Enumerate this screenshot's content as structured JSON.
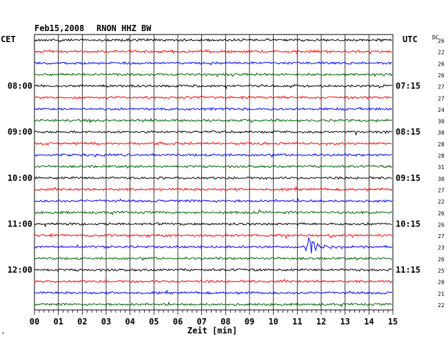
{
  "header": {
    "date": "Feb15,2008",
    "station": "RNON HHZ BW"
  },
  "labels": {
    "left_tz": "CET",
    "right_tz": "UTC",
    "dc_label": "DC",
    "corner_mark": "∘"
  },
  "colors": {
    "trace": [
      "#000000",
      "#ff0000",
      "#0000ff",
      "#006400"
    ],
    "grid": "#000000"
  },
  "chart_data": {
    "type": "line",
    "title": "Feb15,2008  RNON HHZ BW",
    "xlabel": "Zeit [min]",
    "ylabel": "",
    "x_ticks": [
      "00",
      "01",
      "02",
      "03",
      "04",
      "05",
      "06",
      "07",
      "08",
      "09",
      "10",
      "11",
      "12",
      "13",
      "14",
      "15"
    ],
    "xlim": [
      0,
      15
    ],
    "left_hour_labels": [
      "08:00",
      "09:00",
      "10:00",
      "11:00",
      "12:00"
    ],
    "right_hour_labels": [
      "07:15",
      "08:15",
      "09:15",
      "10:15",
      "11:15"
    ],
    "trace_rows": 24,
    "dc_offsets": [
      26,
      22,
      26,
      26,
      27,
      27,
      24,
      30,
      30,
      28,
      28,
      31,
      30,
      27,
      22,
      26,
      26,
      27,
      23,
      26,
      25,
      20,
      21,
      22
    ],
    "events": [
      {
        "row": 18,
        "minute": 11.3,
        "label": ""
      }
    ]
  }
}
